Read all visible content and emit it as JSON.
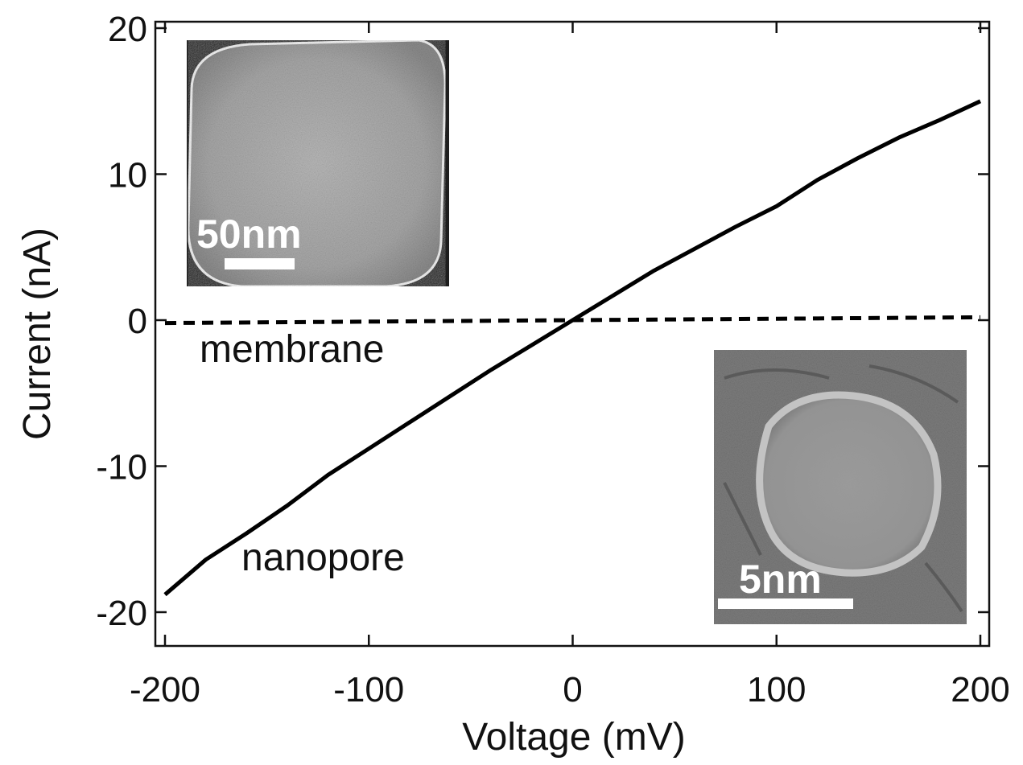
{
  "chart_data": {
    "type": "line",
    "xlabel": "Voltage (mV)",
    "ylabel": "Current (nA)",
    "xlim": [
      -200,
      200
    ],
    "ylim": [
      -22,
      20
    ],
    "xticks": [
      -200,
      -100,
      0,
      100,
      200
    ],
    "yticks": [
      -20,
      -10,
      0,
      10,
      20
    ],
    "grid": false,
    "series": [
      {
        "name": "nanopore",
        "style": "solid",
        "color": "#000000",
        "x": [
          -200,
          -180,
          -160,
          -140,
          -120,
          -100,
          -80,
          -60,
          -40,
          -20,
          0,
          20,
          40,
          60,
          80,
          100,
          120,
          140,
          160,
          180,
          200
        ],
        "y": [
          -18.8,
          -16.4,
          -14.6,
          -12.7,
          -10.6,
          -8.8,
          -7.0,
          -5.2,
          -3.4,
          -1.7,
          0.0,
          1.7,
          3.4,
          4.9,
          6.4,
          7.8,
          9.6,
          11.1,
          12.5,
          13.7,
          15.0
        ]
      },
      {
        "name": "membrane",
        "style": "dashed",
        "color": "#000000",
        "x": [
          -200,
          -100,
          0,
          100,
          200
        ],
        "y": [
          -0.2,
          -0.1,
          0.0,
          0.1,
          0.2
        ]
      }
    ],
    "insets": [
      {
        "name": "nanopore-overview-micrograph",
        "scale_label": "50nm"
      },
      {
        "name": "nanopore-closeup-micrograph",
        "scale_label": "5nm"
      }
    ]
  }
}
